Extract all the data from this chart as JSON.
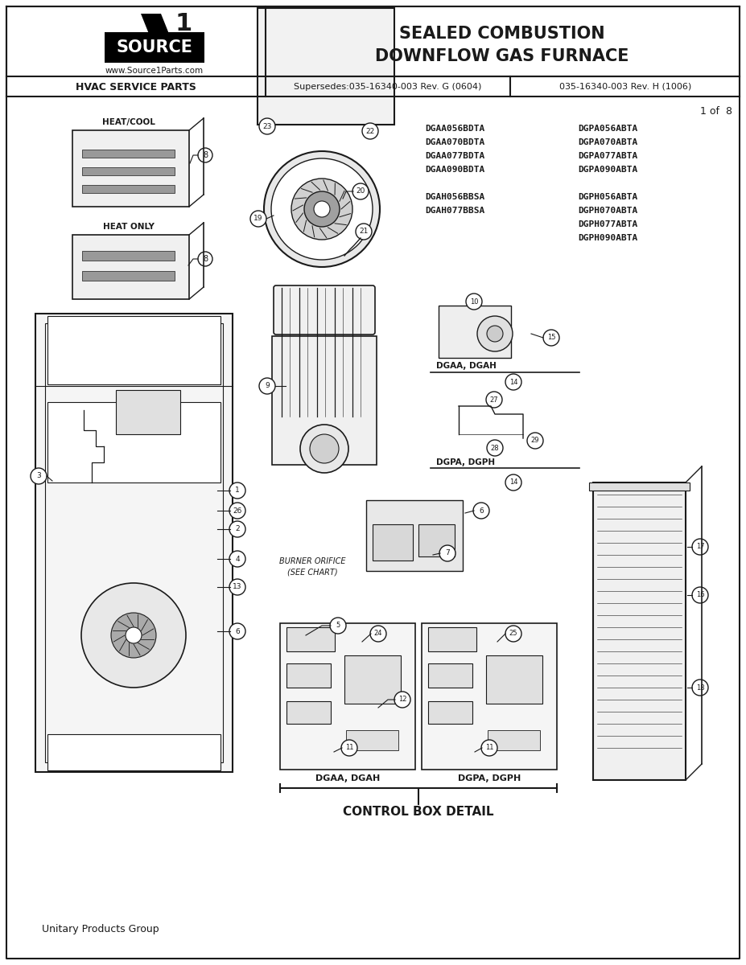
{
  "title_line1": "SEALED COMBUSTION",
  "title_line2": "DOWNFLOW GAS FURNACE",
  "website": "www.Source1Parts.com",
  "hvac_label": "HVAC SERVICE PARTS",
  "supersedes": "Supersedes:035-16340-003 Rev. G (0604)",
  "rev_h": "035-16340-003 Rev. H (1006)",
  "page": "1 of  8",
  "model_codes_left": [
    "DGAA056BDTA",
    "DGAA070BDTA",
    "DGAA077BDTA",
    "DGAA090BDTA",
    "",
    "DGAH056BBSA",
    "DGAH077BBSA"
  ],
  "model_codes_right": [
    "DGPA056ABTA",
    "DGPA070ABTA",
    "DGPA077ABTA",
    "DGPA090ABTA",
    "",
    "DGPH056ABTA",
    "DGPH070ABTA",
    "DGPH077ABTA",
    "DGPH090ABTA"
  ],
  "control_box_label": "CONTROL BOX DETAIL",
  "dgaa_dgah_label": "DGAA, DGAH",
  "dgpa_dgph_label": "DGPA, DGPH",
  "footer": "Unitary Products Group",
  "bg_color": "#ffffff",
  "text_color": "#1a1a1a",
  "line_color": "#1a1a1a"
}
